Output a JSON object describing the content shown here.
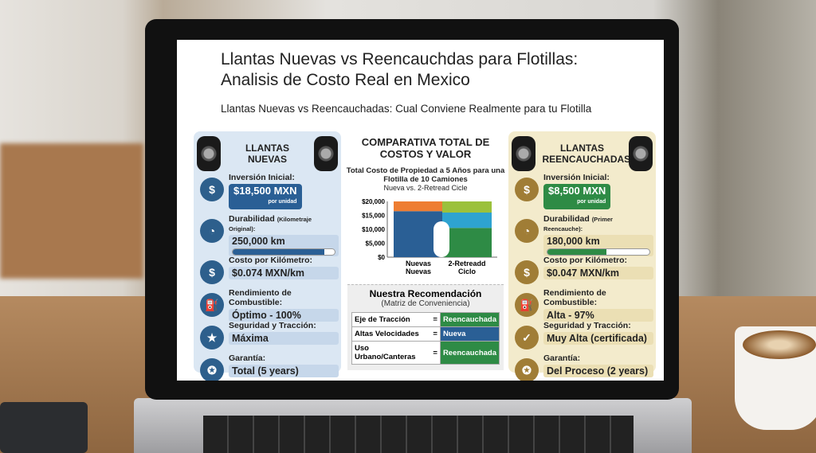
{
  "title": "Llantas Nuevas vs Reencauchdas para Flotillas: Analisis de Costo Real en Mexico",
  "subtitle": "Llantas Nuevas vs Reencauchadas: Cual Conviene Realmente para tu Flotilla",
  "colors": {
    "blue": "#2a5f95",
    "green": "#2e8b45",
    "orange": "#ee7d32",
    "lime": "#9bc13c",
    "cyan": "#2ea3d0"
  },
  "left": {
    "title": "LLANTAS NUEVAS",
    "items": [
      {
        "icon": "coins-icon",
        "label": "Inversión Inicial:",
        "value": "$18,500 MXN",
        "sub": "por unidad"
      },
      {
        "icon": "speedometer-icon",
        "label": "Durabilidad",
        "note": "(Kilometraje Original):",
        "value": "250,000 km",
        "progress": 0.9
      },
      {
        "icon": "dollar-coin-icon",
        "label": "Costo por Kilómetro:",
        "value": "$0.074 MXN/km"
      },
      {
        "icon": "fuel-pump-icon",
        "label": "Rendimiento de Combustible:",
        "value": "Óptimo - 100%"
      },
      {
        "icon": "shield-star-icon",
        "label": "Seguridad y Tracción:",
        "value": "Máxima"
      },
      {
        "icon": "warranty-badge-icon",
        "label": "Garantía:",
        "value": "Total (5 years)"
      }
    ]
  },
  "right": {
    "title": "LLANTAS REENCAUCHADAS",
    "items": [
      {
        "icon": "coins-icon",
        "label": "Inversión Inicial:",
        "value": "$8,500 MXN",
        "sub": "por unidad"
      },
      {
        "icon": "speedometer-icon",
        "label": "Durabilidad",
        "note": "(Primer Reencauche):",
        "value": "180,000 km",
        "progress": 0.58
      },
      {
        "icon": "dollar-coin-icon",
        "label": "Costo por Kilómetro:",
        "value": "$0.047 MXN/km"
      },
      {
        "icon": "fuel-pump-icon",
        "label": "Rendimiento de Combustible:",
        "value": "Alta - 97%"
      },
      {
        "icon": "shield-check-icon",
        "label": "Seguridad y Tracción:",
        "value": "Muy Alta (certificada)"
      },
      {
        "icon": "warranty-badge-icon",
        "label": "Garantía:",
        "value": "Del Proceso (2 years)"
      }
    ]
  },
  "middle": {
    "heading": "COMPARATIVA TOTAL DE COSTOS Y VALOR"
  },
  "chart_data": {
    "type": "bar",
    "title": "Total Costo de Propiedad a 5 Años para una Flotilla de 10 Camiones",
    "subtitle": "Nueva vs. 2-Retread Cicle",
    "categories": [
      "Nuevas Nuevas",
      "2-Retreadd Ciclo"
    ],
    "yticks": [
      "$0",
      "$5,000",
      "$10,000",
      "$15,000",
      "$20,000"
    ],
    "ylim": [
      0,
      20000
    ],
    "stacked": true,
    "stacks": [
      [
        {
          "value": 16500,
          "color": "#2a5f95"
        },
        {
          "value": 3500,
          "color": "#ee7d32"
        }
      ],
      [
        {
          "value": 10500,
          "color": "#2e8b45"
        },
        {
          "value": 5500,
          "color": "#2ea3d0"
        },
        {
          "value": 4000,
          "color": "#9bc13c"
        }
      ]
    ]
  },
  "recommendation": {
    "title": "Nuestra Recomendación",
    "subtitle": "(Matriz de Conveniencia)",
    "rows": [
      {
        "use": "Eje de Tracción",
        "eq": "=",
        "choice": "Reencauchada",
        "color": "#2e8b45"
      },
      {
        "use": "Altas Velocidades",
        "eq": "=",
        "choice": "Nueva",
        "color": "#2a5f95"
      },
      {
        "use": "Uso Urbano/Canteras",
        "eq": "=",
        "choice": "Reencauchada",
        "color": "#2e8b45"
      }
    ]
  }
}
